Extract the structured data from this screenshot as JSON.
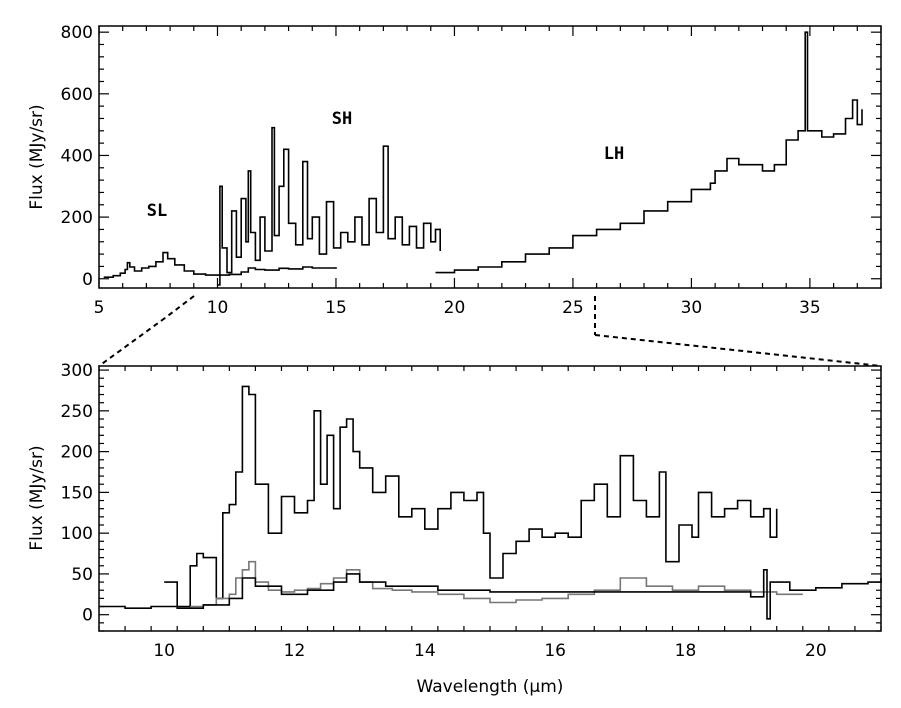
{
  "chart_data": [
    {
      "type": "line",
      "xlim": [
        5,
        38
      ],
      "ylim": [
        -30,
        820
      ],
      "xticks": [
        5,
        10,
        15,
        20,
        25,
        30,
        35
      ],
      "yticks": [
        0,
        200,
        400,
        600,
        800
      ],
      "xlabel": "",
      "ylabel": "Flux (MJy/sr)",
      "annotations": [
        {
          "text": "SL",
          "x": 7.7,
          "y": 190
        },
        {
          "text": "SH",
          "x": 15.2,
          "y": 470
        },
        {
          "text": "LH",
          "x": 26.1,
          "y": 370
        }
      ],
      "series": [
        {
          "name": "",
          "color": "#000000",
          "points": [
            [
              5.2,
              5
            ],
            [
              5.6,
              10
            ],
            [
              5.9,
              18
            ],
            [
              6.1,
              30
            ],
            [
              6.2,
              52
            ],
            [
              6.3,
              38
            ],
            [
              6.5,
              25
            ],
            [
              6.8,
              35
            ],
            [
              7.1,
              40
            ],
            [
              7.4,
              55
            ],
            [
              7.7,
              85
            ],
            [
              7.9,
              65
            ],
            [
              8.2,
              45
            ],
            [
              8.6,
              25
            ],
            [
              9.0,
              15
            ],
            [
              9.5,
              12
            ],
            [
              10.0,
              12
            ],
            [
              10.5,
              14
            ],
            [
              11.0,
              22
            ],
            [
              11.3,
              35
            ],
            [
              11.6,
              30
            ],
            [
              12.0,
              28
            ],
            [
              12.6,
              34
            ],
            [
              13.0,
              32
            ],
            [
              13.6,
              38
            ],
            [
              14.0,
              35
            ],
            [
              15.0,
              32
            ]
          ]
        },
        {
          "name": "",
          "color": "#000000",
          "points": [
            [
              10.0,
              -20
            ],
            [
              10.1,
              300
            ],
            [
              10.2,
              100
            ],
            [
              10.4,
              20
            ],
            [
              10.6,
              220
            ],
            [
              10.8,
              70
            ],
            [
              11.0,
              260
            ],
            [
              11.2,
              120
            ],
            [
              11.3,
              350
            ],
            [
              11.4,
              150
            ],
            [
              11.6,
              60
            ],
            [
              11.8,
              200
            ],
            [
              12.0,
              90
            ],
            [
              12.3,
              490
            ],
            [
              12.4,
              140
            ],
            [
              12.6,
              300
            ],
            [
              12.8,
              420
            ],
            [
              13.0,
              180
            ],
            [
              13.3,
              110
            ],
            [
              13.6,
              380
            ],
            [
              13.8,
              130
            ],
            [
              14.0,
              200
            ],
            [
              14.3,
              80
            ],
            [
              14.6,
              250
            ],
            [
              14.9,
              100
            ],
            [
              15.2,
              150
            ],
            [
              15.5,
              120
            ],
            [
              15.8,
              200
            ],
            [
              16.1,
              110
            ],
            [
              16.4,
              260
            ],
            [
              16.7,
              150
            ],
            [
              17.0,
              430
            ],
            [
              17.2,
              130
            ],
            [
              17.5,
              200
            ],
            [
              17.8,
              110
            ],
            [
              18.1,
              170
            ],
            [
              18.4,
              100
            ],
            [
              18.7,
              180
            ],
            [
              19.0,
              120
            ],
            [
              19.2,
              160
            ],
            [
              19.4,
              90
            ]
          ]
        },
        {
          "name": "",
          "color": "#000000",
          "points": [
            [
              19.2,
              20
            ],
            [
              20.0,
              28
            ],
            [
              21.0,
              38
            ],
            [
              22.0,
              55
            ],
            [
              23.0,
              80
            ],
            [
              24.0,
              100
            ],
            [
              25.0,
              140
            ],
            [
              26.0,
              160
            ],
            [
              27.0,
              180
            ],
            [
              28.0,
              220
            ],
            [
              29.0,
              250
            ],
            [
              30.0,
              290
            ],
            [
              30.8,
              310
            ],
            [
              31.0,
              350
            ],
            [
              31.5,
              390
            ],
            [
              32.0,
              370
            ],
            [
              33.0,
              350
            ],
            [
              33.5,
              370
            ],
            [
              34.0,
              450
            ],
            [
              34.5,
              480
            ],
            [
              34.8,
              800
            ],
            [
              34.9,
              480
            ],
            [
              35.5,
              460
            ],
            [
              36.0,
              470
            ],
            [
              36.5,
              520
            ],
            [
              36.8,
              580
            ],
            [
              37.0,
              500
            ],
            [
              37.2,
              550
            ]
          ]
        }
      ]
    },
    {
      "type": "line",
      "xlim": [
        9,
        21
      ],
      "ylim": [
        -20,
        305
      ],
      "xticks": [
        10,
        12,
        14,
        16,
        18,
        20
      ],
      "yticks": [
        0,
        50,
        100,
        150,
        200,
        250,
        300
      ],
      "xlabel": "Wavelength (μm)",
      "ylabel": "Flux (MJy/sr)",
      "series": [
        {
          "name": "",
          "color": "#000000",
          "points": [
            [
              10.0,
              40
            ],
            [
              10.2,
              10
            ],
            [
              10.4,
              60
            ],
            [
              10.5,
              75
            ],
            [
              10.6,
              70
            ],
            [
              10.8,
              20
            ],
            [
              10.9,
              125
            ],
            [
              11.0,
              135
            ],
            [
              11.1,
              175
            ],
            [
              11.2,
              280
            ],
            [
              11.3,
              270
            ],
            [
              11.4,
              160
            ],
            [
              11.6,
              100
            ],
            [
              11.8,
              145
            ],
            [
              12.0,
              125
            ],
            [
              12.2,
              140
            ],
            [
              12.3,
              250
            ],
            [
              12.4,
              160
            ],
            [
              12.5,
              220
            ],
            [
              12.6,
              130
            ],
            [
              12.7,
              230
            ],
            [
              12.8,
              240
            ],
            [
              12.9,
              200
            ],
            [
              13.0,
              180
            ],
            [
              13.2,
              150
            ],
            [
              13.4,
              170
            ],
            [
              13.6,
              120
            ],
            [
              13.8,
              130
            ],
            [
              14.0,
              105
            ],
            [
              14.2,
              130
            ],
            [
              14.4,
              150
            ],
            [
              14.6,
              140
            ],
            [
              14.8,
              150
            ],
            [
              14.9,
              100
            ],
            [
              15.0,
              45
            ],
            [
              15.2,
              75
            ],
            [
              15.4,
              90
            ],
            [
              15.6,
              105
            ],
            [
              15.8,
              95
            ],
            [
              16.0,
              100
            ],
            [
              16.2,
              95
            ],
            [
              16.4,
              140
            ],
            [
              16.6,
              160
            ],
            [
              16.8,
              120
            ],
            [
              17.0,
              195
            ],
            [
              17.2,
              140
            ],
            [
              17.4,
              120
            ],
            [
              17.6,
              175
            ],
            [
              17.7,
              65
            ],
            [
              17.9,
              110
            ],
            [
              18.1,
              95
            ],
            [
              18.2,
              150
            ],
            [
              18.4,
              120
            ],
            [
              18.6,
              130
            ],
            [
              18.8,
              140
            ],
            [
              19.0,
              120
            ],
            [
              19.2,
              130
            ],
            [
              19.3,
              95
            ],
            [
              19.4,
              130
            ]
          ]
        },
        {
          "name": "",
          "color": "#777777",
          "points": [
            [
              10.4,
              10
            ],
            [
              10.6,
              12
            ],
            [
              10.8,
              20
            ],
            [
              11.0,
              25
            ],
            [
              11.1,
              45
            ],
            [
              11.2,
              55
            ],
            [
              11.3,
              65
            ],
            [
              11.4,
              40
            ],
            [
              11.6,
              30
            ],
            [
              11.8,
              28
            ],
            [
              12.0,
              30
            ],
            [
              12.2,
              32
            ],
            [
              12.4,
              38
            ],
            [
              12.6,
              45
            ],
            [
              12.8,
              55
            ],
            [
              13.0,
              40
            ],
            [
              13.2,
              32
            ],
            [
              13.5,
              30
            ],
            [
              13.8,
              28
            ],
            [
              14.2,
              25
            ],
            [
              14.6,
              20
            ],
            [
              15.0,
              15
            ],
            [
              15.4,
              18
            ],
            [
              15.8,
              20
            ],
            [
              16.2,
              25
            ],
            [
              16.6,
              30
            ],
            [
              17.0,
              45
            ],
            [
              17.4,
              35
            ],
            [
              17.8,
              30
            ],
            [
              18.2,
              35
            ],
            [
              18.6,
              30
            ],
            [
              19.0,
              28
            ],
            [
              19.4,
              25
            ],
            [
              19.8,
              25
            ]
          ]
        },
        {
          "name": "",
          "color": "#000000",
          "points": [
            [
              9.0,
              10
            ],
            [
              9.4,
              8
            ],
            [
              9.8,
              10
            ],
            [
              10.2,
              8
            ],
            [
              10.6,
              12
            ],
            [
              11.0,
              20
            ],
            [
              11.2,
              45
            ],
            [
              11.4,
              35
            ],
            [
              11.8,
              25
            ],
            [
              12.2,
              30
            ],
            [
              12.6,
              40
            ],
            [
              12.8,
              50
            ],
            [
              13.0,
              40
            ],
            [
              13.4,
              35
            ],
            [
              13.8,
              35
            ],
            [
              14.2,
              30
            ],
            [
              14.6,
              30
            ],
            [
              15.0,
              28
            ],
            [
              19.0,
              22
            ],
            [
              19.2,
              55
            ],
            [
              19.25,
              -5
            ],
            [
              19.3,
              40
            ],
            [
              19.6,
              30
            ],
            [
              20.0,
              33
            ],
            [
              20.4,
              38
            ],
            [
              20.8,
              40
            ],
            [
              21.0,
              45
            ]
          ]
        }
      ]
    }
  ]
}
